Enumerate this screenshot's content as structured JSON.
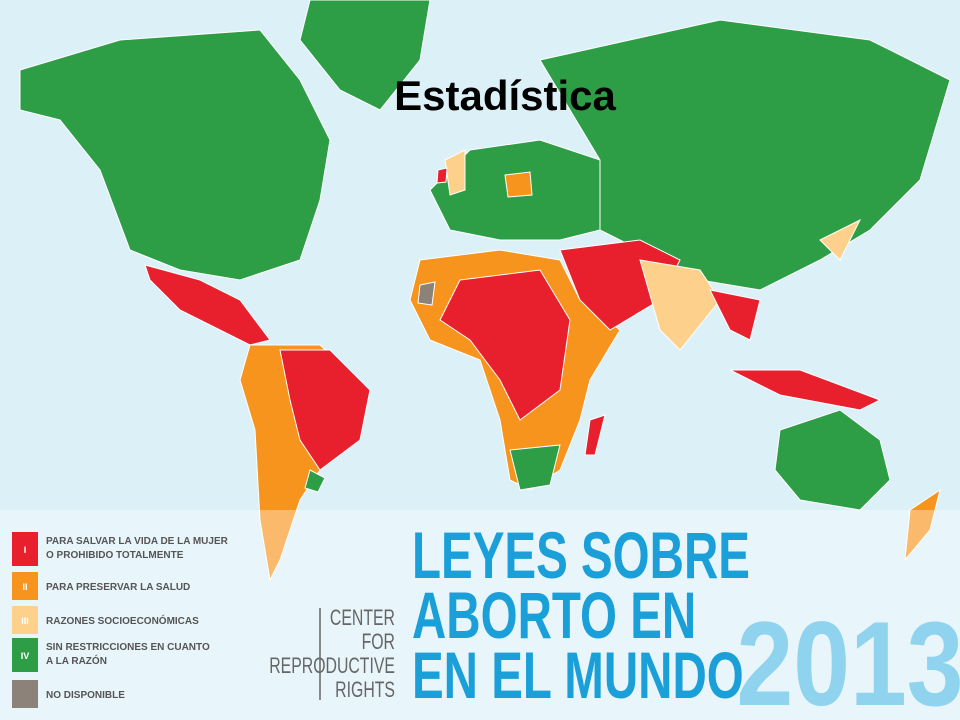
{
  "header": {
    "title": "Estadística"
  },
  "legend": [
    {
      "numeral": "I",
      "color": "#e8202e",
      "lines": [
        "PARA SALVAR LA VIDA DE LA MUJER",
        "O PROHIBIDO TOTALMENTE"
      ]
    },
    {
      "numeral": "II",
      "color": "#f7941d",
      "lines": [
        "PARA PRESERVAR LA SALUD"
      ]
    },
    {
      "numeral": "III",
      "color": "#fdd18c",
      "lines": [
        "RAZONES SOCIOECONÓMICAS"
      ]
    },
    {
      "numeral": "IV",
      "color": "#2e9e46",
      "lines": [
        "SIN RESTRICCIONES EN CUANTO",
        "A LA RAZÓN"
      ]
    },
    {
      "color": "#8c8279",
      "lines": [
        "NO DISPONIBLE"
      ]
    }
  ],
  "logo": {
    "lines": [
      "CENTER",
      "FOR",
      "REPRODUCTIVE",
      "RIGHTS"
    ]
  },
  "banner": {
    "lines": [
      "LEYES SOBRE",
      "ABORTO EN",
      "EN EL MUNDO"
    ],
    "year": "2013"
  }
}
